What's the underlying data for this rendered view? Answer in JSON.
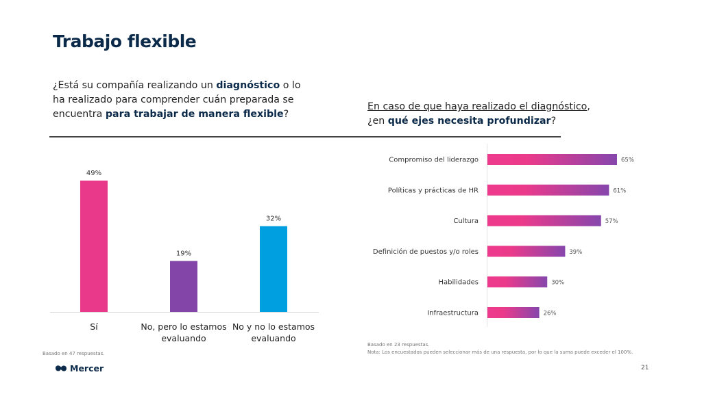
{
  "page": {
    "title": "Trabajo flexible",
    "page_number": "21",
    "brand": "Mercer"
  },
  "left_question": {
    "parts": [
      {
        "text": "¿Está su compañía realizando un ",
        "bold": false
      },
      {
        "text": "diagnóstico",
        "bold": true
      },
      {
        "text": " o lo ha realizado para comprender cuán preparada se encuentra ",
        "bold": false
      },
      {
        "text": "para trabajar de manera flexible",
        "bold": true
      },
      {
        "text": "?",
        "bold": false
      }
    ]
  },
  "right_question": {
    "line1": "En caso de que haya realizado el diagnóstico",
    "line1_suffix": ",",
    "line2_prefix": "¿en ",
    "line2_bold": "qué ejes necesita profundizar",
    "line2_suffix": "?"
  },
  "notes": {
    "left": "Basado en 47 respuestas.",
    "right_line1": "Basado en 23 respuestas.",
    "right_line2": "Nota: Los encuestados pueden seleccionar más de una respuesta, por lo que la suma puede exceder el 100%."
  },
  "colors": {
    "title": "#0B2A4A",
    "pink": "#E8398A",
    "purple": "#8346A8",
    "blue": "#009FDF",
    "gradient_start": "#EE3A8C",
    "gradient_end": "#8646AC"
  },
  "chart_data": [
    {
      "type": "bar",
      "title": "",
      "categories": [
        "Sí",
        "No, pero lo estamos evaluando",
        "No y no lo estamos evaluando"
      ],
      "category_lines": [
        [
          "Sí"
        ],
        [
          "No, pero lo estamos",
          "evaluando"
        ],
        [
          "No y no lo estamos",
          "evaluando"
        ]
      ],
      "values": [
        49,
        19,
        32
      ],
      "labels": [
        "49%",
        "19%",
        "32%"
      ],
      "bar_colors": [
        "#E8398A",
        "#8346A8",
        "#009FDF"
      ],
      "xlabel": "",
      "ylabel": "",
      "ylim": [
        0,
        49
      ],
      "grid": false,
      "legend": "none"
    },
    {
      "type": "bar",
      "orientation": "horizontal",
      "title": "",
      "categories": [
        "Compromiso del liderazgo",
        "Políticas y prácticas de HR",
        "Cultura",
        "Definición de puestos y/o roles",
        "Habilidades",
        "Infraestructura"
      ],
      "values": [
        65,
        61,
        57,
        39,
        30,
        26
      ],
      "labels": [
        "65%",
        "61%",
        "57%",
        "39%",
        "30%",
        "26%"
      ],
      "xlabel": "",
      "ylabel": "",
      "xlim": [
        0,
        65
      ],
      "grid": false,
      "legend": "none"
    }
  ]
}
